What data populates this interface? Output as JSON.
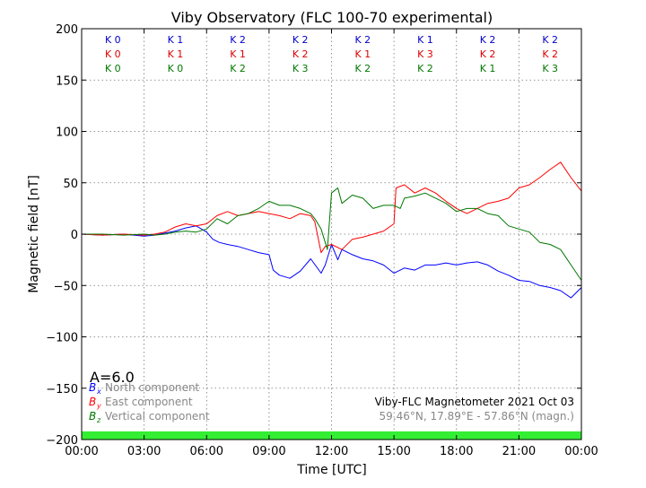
{
  "chart_data": {
    "type": "line",
    "title": "Viby Observatory (FLC 100-70 experimental)",
    "xlabel": "Time [UTC]",
    "ylabel": "Magnetic field [nT]",
    "xlim": [
      0,
      24
    ],
    "ylim": [
      -200,
      200
    ],
    "xticks": [
      0,
      3,
      6,
      9,
      12,
      15,
      18,
      21,
      24
    ],
    "xtick_labels": [
      "00:00",
      "03:00",
      "06:00",
      "09:00",
      "12:00",
      "15:00",
      "18:00",
      "21:00",
      "00:00"
    ],
    "yticks": [
      200,
      150,
      100,
      50,
      0,
      -50,
      -100,
      -150,
      -200
    ],
    "ytick_labels": [
      "200",
      "150",
      "100",
      "50",
      "0",
      "−50",
      "−100",
      "−150",
      "−200"
    ],
    "grid": true,
    "k_index_rows": [
      {
        "color": "#0000cc",
        "labels": [
          "K 0",
          "K 1",
          "K 2",
          "K 2",
          "K 2",
          "K 1",
          "K 2",
          "K 2"
        ]
      },
      {
        "color": "#dd0000",
        "labels": [
          "K 0",
          "K 1",
          "K 1",
          "K 2",
          "K 1",
          "K 3",
          "K 2",
          "K 2"
        ]
      },
      {
        "color": "#007700",
        "labels": [
          "K 0",
          "K 0",
          "K 2",
          "K 3",
          "K 2",
          "K 2",
          "K 1",
          "K 3"
        ]
      }
    ],
    "a_index_label": "A=6.0",
    "legend": [
      {
        "symbol": "B",
        "subscript": "x",
        "text": "North component",
        "color": "#0000ff"
      },
      {
        "symbol": "B",
        "subscript": "y",
        "text": "East component",
        "color": "#ff0000"
      },
      {
        "symbol": "B",
        "subscript": "z",
        "text": "Vertical component",
        "color": "#007700"
      }
    ],
    "legend_text_color": "#888888",
    "annotation": {
      "line1": "Viby-FLC Magnetometer 2021 Oct 03",
      "line2": "59.46°N, 17.89°E - 57.86°N (magn.)"
    },
    "status_band": {
      "color": "#33ee33",
      "y_from": -200,
      "y_to": -192
    },
    "series": [
      {
        "color": "#0000ff",
        "x": [
          0,
          1,
          2,
          3,
          3.5,
          4,
          4.5,
          5,
          5.5,
          6,
          6.3,
          6.6,
          7,
          7.5,
          8,
          8.5,
          9,
          9.2,
          9.5,
          10,
          10.5,
          11,
          11.5,
          11.7,
          12,
          12.3,
          12.5,
          13,
          13.5,
          14,
          14.5,
          15,
          15.2,
          15.5,
          16,
          16.5,
          17,
          17.5,
          18,
          18.5,
          19,
          19.5,
          20,
          20.5,
          21,
          21.5,
          22,
          22.5,
          23,
          23.5,
          24
        ],
        "y": [
          0,
          -1,
          0,
          -2,
          -1,
          1,
          3,
          6,
          8,
          2,
          -5,
          -8,
          -10,
          -12,
          -15,
          -18,
          -20,
          -35,
          -40,
          -43,
          -36,
          -24,
          -38,
          -30,
          -10,
          -25,
          -15,
          -20,
          -24,
          -26,
          -30,
          -38,
          -36,
          -33,
          -35,
          -30,
          -30,
          -28,
          -30,
          -28,
          -27,
          -30,
          -36,
          -40,
          -45,
          -46,
          -50,
          -52,
          -55,
          -62,
          -52
        ]
      },
      {
        "color": "#ff0000",
        "x": [
          0,
          1,
          2,
          3,
          3.5,
          4,
          4.5,
          5,
          5.5,
          6,
          6.5,
          7,
          7.5,
          8,
          8.5,
          9,
          9.5,
          10,
          10.5,
          11,
          11.2,
          11.5,
          11.7,
          12,
          12.5,
          13,
          13.5,
          14,
          14.5,
          15,
          15.1,
          15.5,
          16,
          16.5,
          17,
          17.5,
          18,
          18.5,
          19,
          19.5,
          20,
          20.5,
          21,
          21.5,
          22,
          22.5,
          23,
          23.5,
          24
        ],
        "y": [
          0,
          -1,
          0,
          -1,
          0,
          2,
          7,
          10,
          8,
          10,
          18,
          22,
          18,
          20,
          22,
          20,
          18,
          15,
          20,
          18,
          12,
          -18,
          -12,
          -10,
          -15,
          -5,
          -3,
          0,
          3,
          10,
          45,
          48,
          40,
          45,
          40,
          32,
          25,
          20,
          25,
          30,
          32,
          35,
          45,
          48,
          55,
          63,
          70,
          55,
          42
        ]
      },
      {
        "color": "#007700",
        "x": [
          0,
          1,
          2,
          3,
          3.5,
          4,
          4.5,
          5,
          5.5,
          6,
          6.5,
          7,
          7.5,
          8,
          8.5,
          9,
          9.5,
          10,
          10.5,
          11,
          11.2,
          11.5,
          11.8,
          12,
          12.3,
          12.5,
          13,
          13.5,
          14,
          14.5,
          15,
          15.3,
          15.5,
          16,
          16.5,
          17,
          17.5,
          18,
          18.5,
          19,
          19.5,
          20,
          20.5,
          21,
          21.5,
          22,
          22.5,
          23,
          23.5,
          24
        ],
        "y": [
          0,
          0,
          -1,
          0,
          -1,
          0,
          2,
          3,
          2,
          5,
          15,
          10,
          18,
          20,
          25,
          32,
          28,
          28,
          25,
          20,
          15,
          5,
          -15,
          40,
          45,
          30,
          38,
          35,
          25,
          28,
          28,
          25,
          35,
          37,
          40,
          35,
          30,
          22,
          25,
          25,
          20,
          18,
          8,
          5,
          2,
          -8,
          -10,
          -15,
          -30,
          -45
        ]
      }
    ]
  }
}
